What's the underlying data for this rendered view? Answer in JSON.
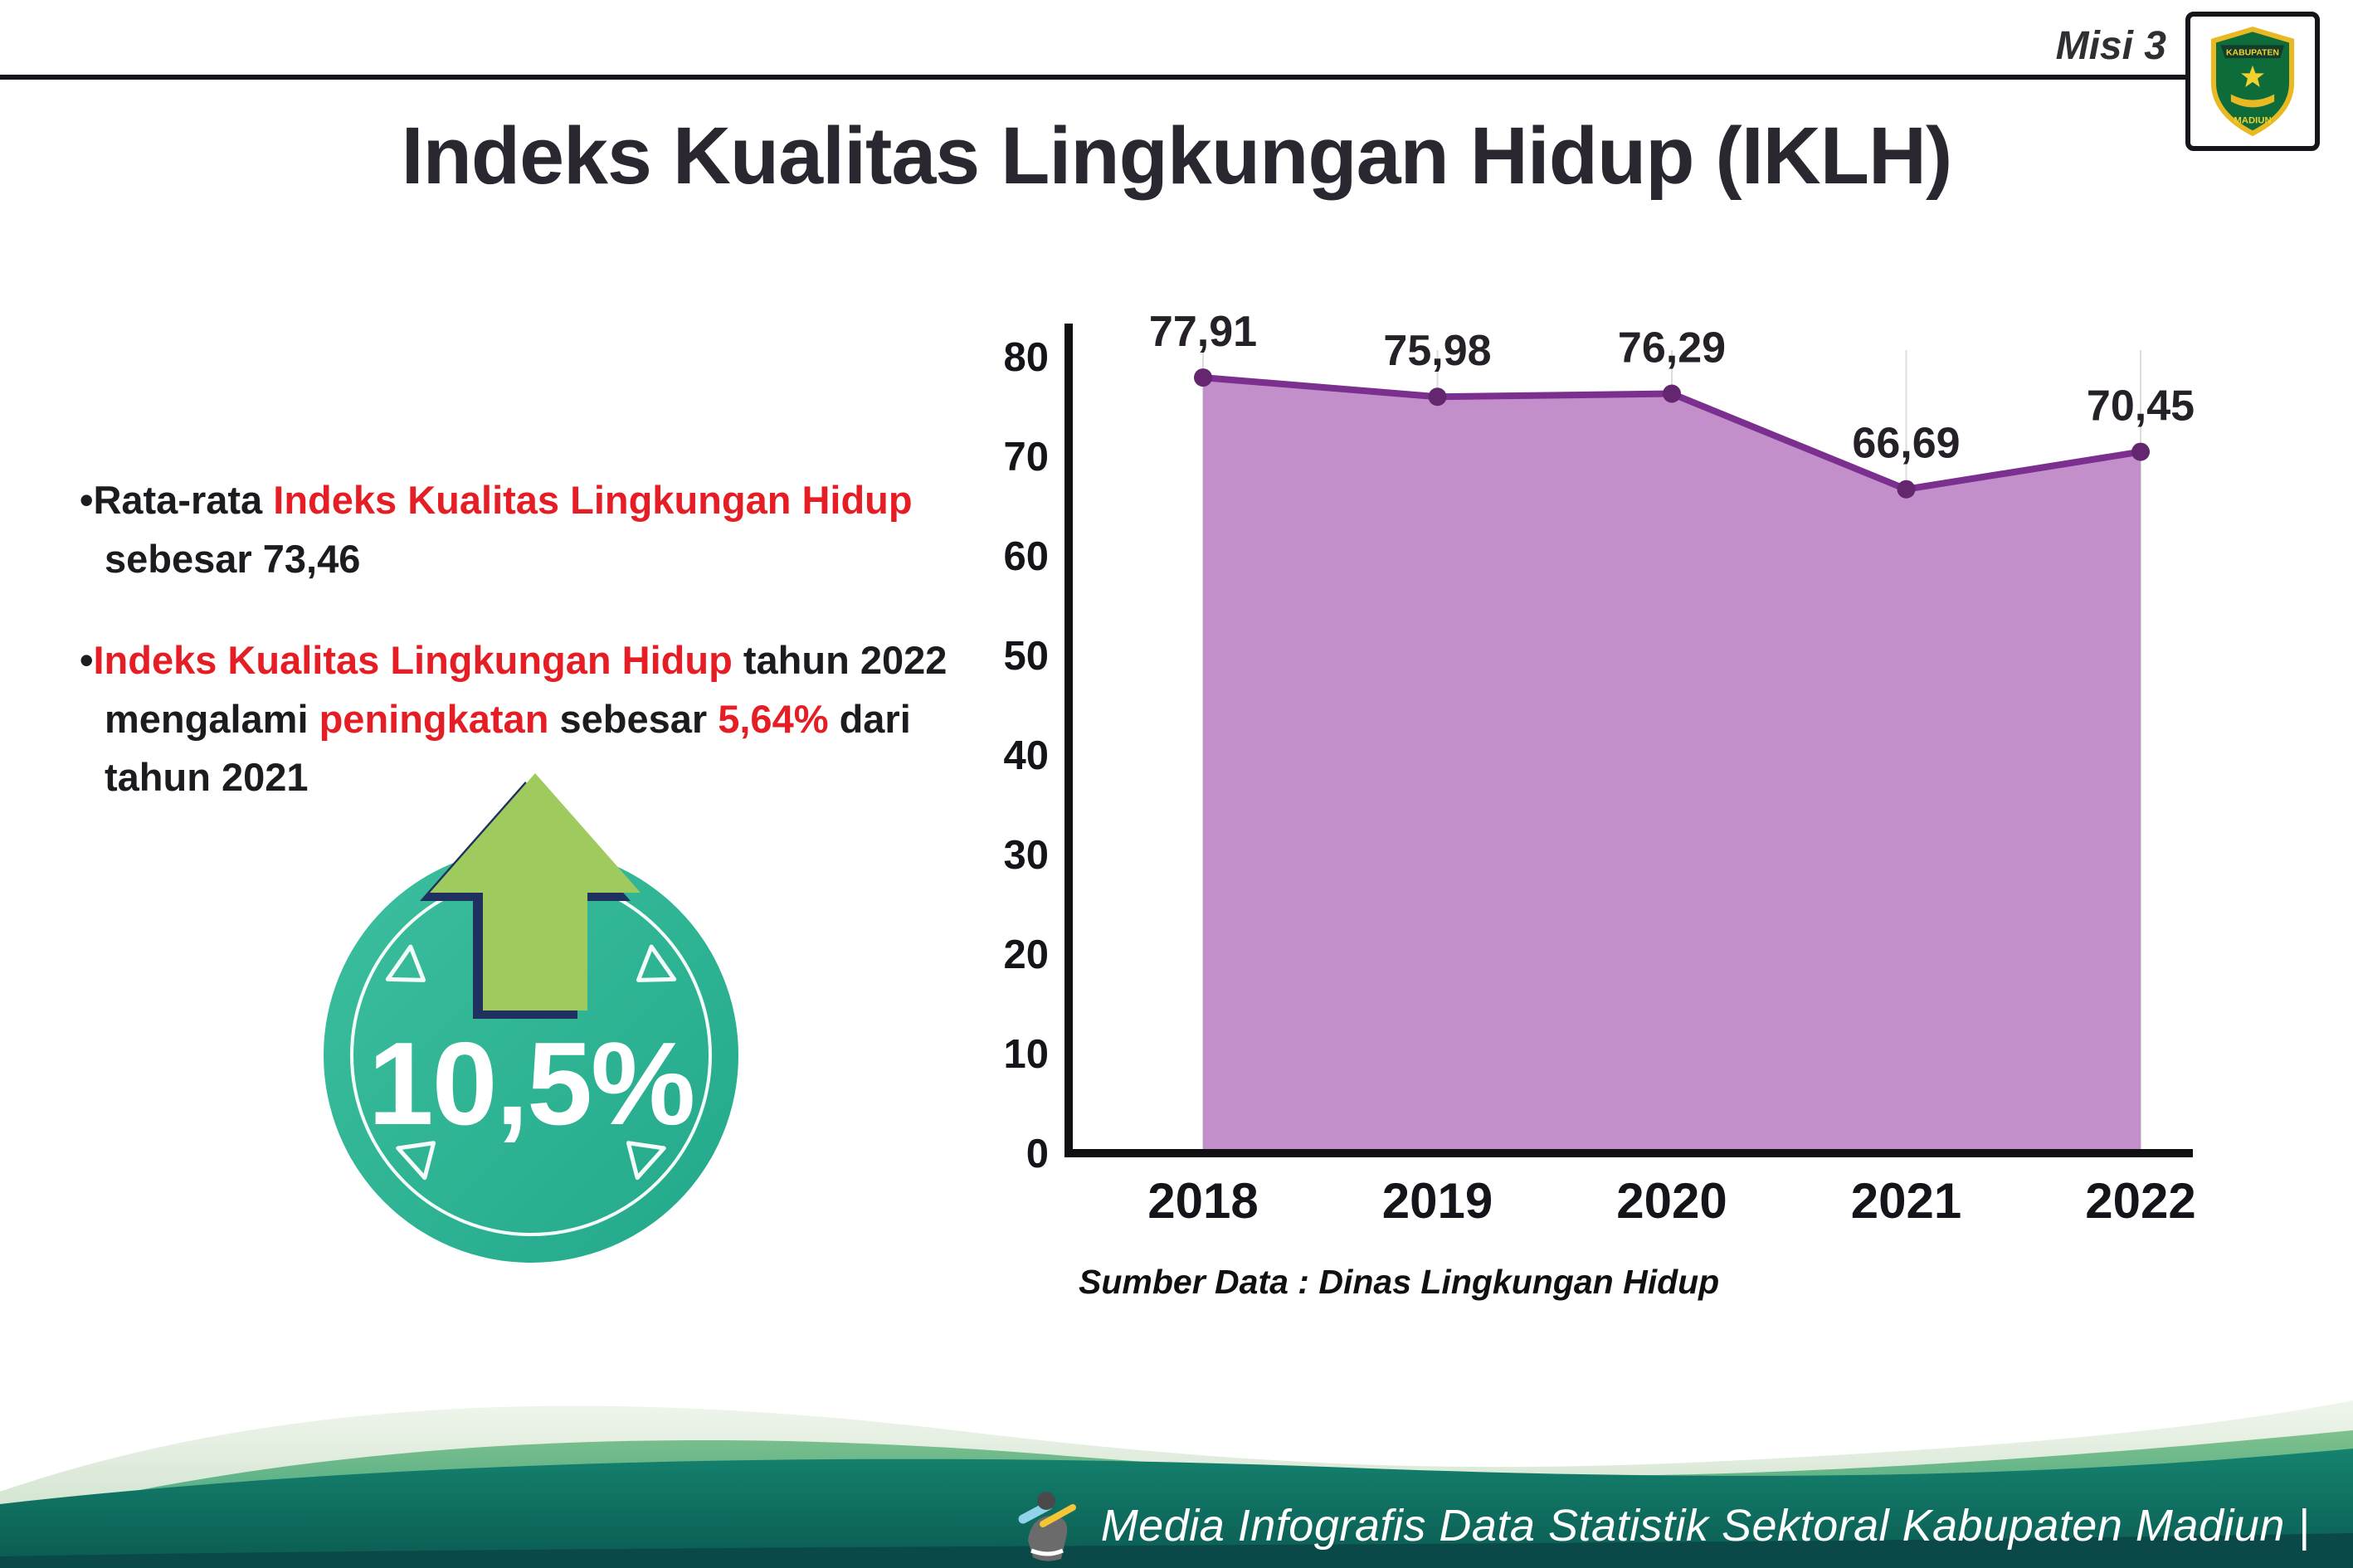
{
  "header": {
    "misi": "Misi 3",
    "title": "Indeks Kualitas Lingkungan Hidup (IKLH)",
    "logo": {
      "top": "KABUPATEN",
      "bottom": "MADIUN"
    }
  },
  "bullets": {
    "b1": {
      "s0": "•Rata-rata ",
      "s1": "Indeks Kualitas Lingkungan Hidup",
      "s2": " sebesar 73,46"
    },
    "b2": {
      "s0": "•",
      "s1": "Indeks Kualitas Lingkungan Hidup",
      "s2": " tahun 2022 mengalami ",
      "s3": "peningkatan",
      "s4": " sebesar ",
      "s5": "5,64%",
      "s6": " dari tahun 2021"
    }
  },
  "badge": {
    "value": "10,5%"
  },
  "chart_data": {
    "type": "area",
    "title": "Indeks Kualitas Lingkungan Hidup (IKLH)",
    "categories": [
      "2018",
      "2019",
      "2020",
      "2021",
      "2022"
    ],
    "values": [
      77.91,
      75.98,
      76.29,
      66.69,
      70.45
    ],
    "value_labels": [
      "77,91",
      "75,98",
      "76,29",
      "66,69",
      "70,45"
    ],
    "ylim": [
      0,
      80
    ],
    "yticks": [
      0,
      10,
      20,
      30,
      40,
      50,
      60,
      70,
      80
    ],
    "grid": "vertical-light",
    "legend": "none",
    "source": "Sumber Data : Dinas Lingkungan Hidup",
    "colors": {
      "area": "#c28fca",
      "line": "#7b2f8e",
      "dot": "#63266f"
    }
  },
  "footer": {
    "caption": "Media Infografis Data Statistik Sektoral Kabupaten Madiun |"
  }
}
